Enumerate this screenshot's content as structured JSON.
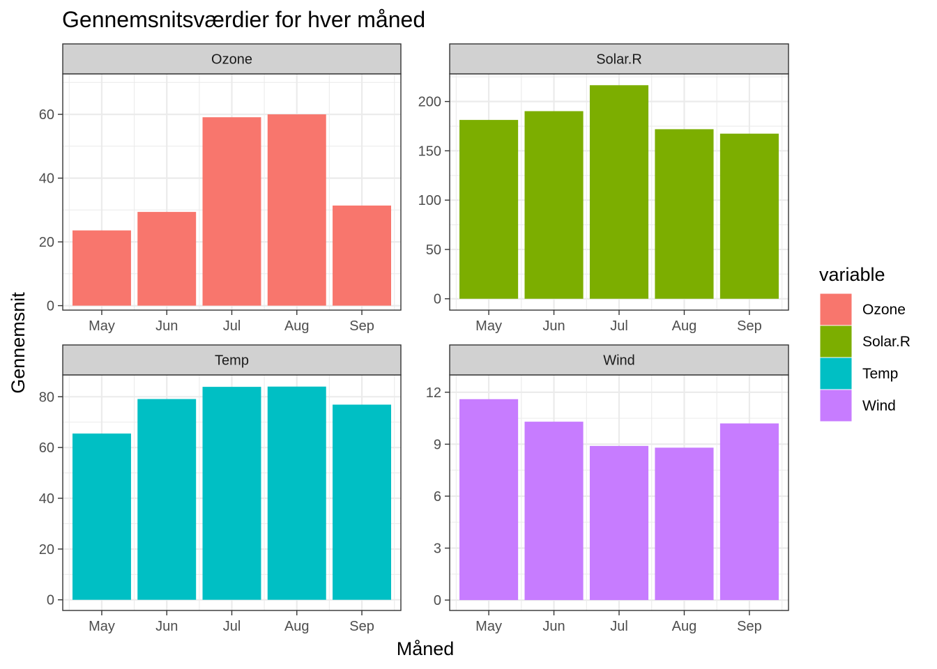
{
  "chart_data": {
    "type": "bar",
    "title": "Gennemsnitsværdier for hver måned",
    "xlabel": "Måned",
    "ylabel": "Gennemsnit",
    "categories": [
      "May",
      "Jun",
      "Jul",
      "Aug",
      "Sep"
    ],
    "grid": true,
    "legend": {
      "title": "variable",
      "position": "right",
      "entries": [
        "Ozone",
        "Solar.R",
        "Temp",
        "Wind"
      ]
    },
    "panels": [
      {
        "name": "Ozone",
        "color": "#F8766D",
        "values": [
          23.6,
          29.4,
          59.1,
          60.0,
          31.4
        ],
        "ylim": [
          -1.4,
          72.7
        ],
        "yticks": [
          0,
          20,
          40,
          60
        ],
        "ytick_labels": [
          "0",
          "20",
          "40",
          "60"
        ]
      },
      {
        "name": "Solar.R",
        "color": "#7CAE00",
        "values": [
          181.3,
          190.2,
          216.5,
          171.9,
          167.4
        ],
        "ylim": [
          -11.5,
          228
        ],
        "yticks": [
          0,
          50,
          100,
          150,
          200
        ],
        "ytick_labels": [
          "0",
          "50",
          "100",
          "150",
          "200"
        ]
      },
      {
        "name": "Temp",
        "color": "#00BFC4",
        "values": [
          65.5,
          79.1,
          83.9,
          84.0,
          76.9
        ],
        "ylim": [
          -4.2,
          88.6
        ],
        "yticks": [
          0,
          20,
          40,
          60,
          80
        ],
        "ytick_labels": [
          "0",
          "20",
          "40",
          "60",
          "80"
        ]
      },
      {
        "name": "Wind",
        "color": "#C77CFF",
        "values": [
          11.6,
          10.3,
          8.9,
          8.8,
          10.2
        ],
        "ylim": [
          -0.6,
          13.0
        ],
        "yticks": [
          0,
          3,
          6,
          9,
          12
        ],
        "ytick_labels": [
          "0",
          "3",
          "6",
          "9",
          "12"
        ]
      }
    ]
  }
}
